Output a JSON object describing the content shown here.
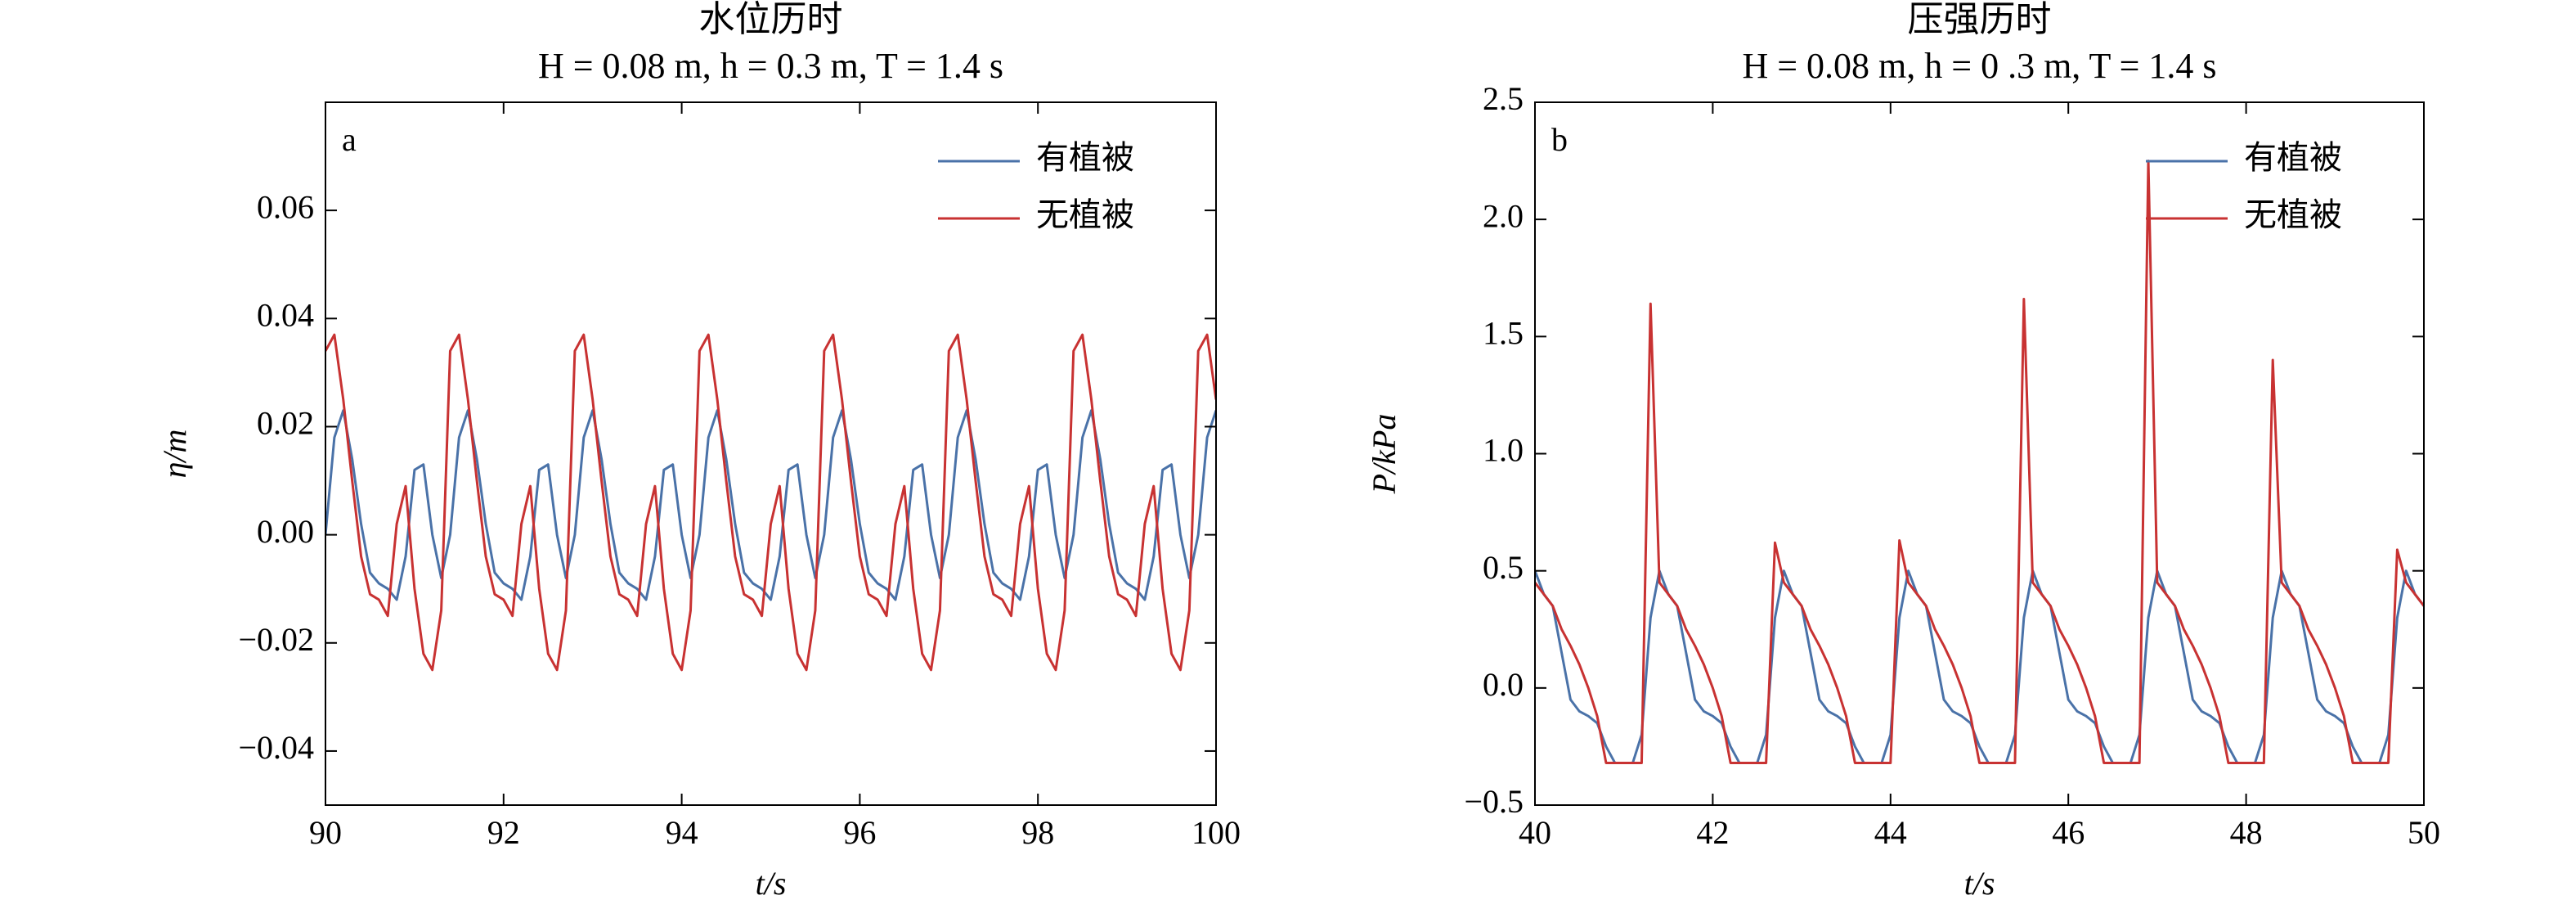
{
  "chart_data": [
    {
      "type": "line",
      "title": "水位历时",
      "subtitle": "H = 0.08 m, h = 0.3 m, T = 1.4 s",
      "panel_label": "a",
      "xlabel": "t/s",
      "ylabel": "η/m",
      "xlim": [
        90,
        100
      ],
      "ylim": [
        -0.05,
        0.08
      ],
      "xticks": [
        90,
        92,
        94,
        96,
        98,
        100
      ],
      "yticks": [
        {
          "value": -0.04,
          "label": "−0.04"
        },
        {
          "value": -0.02,
          "label": "−0.02"
        },
        {
          "value": 0,
          "label": "0.00"
        },
        {
          "value": 0.02,
          "label": "0.02"
        },
        {
          "value": 0.04,
          "label": "0.04"
        },
        {
          "value": 0.06,
          "label": "0.06"
        }
      ],
      "legend": "upper right",
      "x": [
        90,
        90.1,
        90.2,
        90.3,
        90.4,
        90.5,
        90.6,
        90.7,
        90.8,
        90.9,
        91,
        91.1,
        91.2,
        91.3,
        91.4,
        91.5,
        91.6,
        91.7,
        91.8,
        91.9,
        92,
        92.1,
        92.2,
        92.3,
        92.4,
        92.5,
        92.6,
        92.7,
        92.8,
        92.9,
        93,
        93.1,
        93.2,
        93.3,
        93.4,
        93.5,
        93.6,
        93.7,
        93.8,
        93.9,
        94,
        94.1,
        94.2,
        94.3,
        94.4,
        94.5,
        94.6,
        94.7,
        94.8,
        94.9,
        95,
        95.1,
        95.2,
        95.3,
        95.4,
        95.5,
        95.6,
        95.7,
        95.8,
        95.9,
        96,
        96.1,
        96.2,
        96.3,
        96.4,
        96.5,
        96.6,
        96.7,
        96.8,
        96.9,
        97,
        97.1,
        97.2,
        97.3,
        97.4,
        97.5,
        97.6,
        97.7,
        97.8,
        97.9,
        98,
        98.1,
        98.2,
        98.3,
        98.4,
        98.5,
        98.6,
        98.7,
        98.8,
        98.9,
        99,
        99.1,
        99.2,
        99.3,
        99.4,
        99.5,
        99.6,
        99.7,
        99.8,
        99.9,
        100
      ],
      "series": [
        {
          "name": "有植被",
          "color": "#4a72a8",
          "values": [
            0.0,
            0.018,
            0.023,
            0.014,
            0.002,
            -0.007,
            -0.009,
            -0.01,
            -0.012,
            -0.004,
            0.012,
            0.013,
            0.0,
            -0.008,
            0.0,
            0.018,
            0.023,
            0.014,
            0.002,
            -0.007,
            -0.009,
            -0.01,
            -0.012,
            -0.004,
            0.012,
            0.013,
            0.0,
            -0.008,
            0.0,
            0.018,
            0.023,
            0.014,
            0.002,
            -0.007,
            -0.009,
            -0.01,
            -0.012,
            -0.004,
            0.012,
            0.013,
            0.0,
            -0.008,
            0.0,
            0.018,
            0.023,
            0.014,
            0.002,
            -0.007,
            -0.009,
            -0.01,
            -0.012,
            -0.004,
            0.012,
            0.013,
            0.0,
            -0.008,
            0.0,
            0.018,
            0.023,
            0.014,
            0.002,
            -0.007,
            -0.009,
            -0.01,
            -0.012,
            -0.004,
            0.012,
            0.013,
            0.0,
            -0.008,
            0.0,
            0.018,
            0.023,
            0.014,
            0.002,
            -0.007,
            -0.009,
            -0.01,
            -0.012,
            -0.004,
            0.012,
            0.013,
            0.0,
            -0.008,
            0.0,
            0.018,
            0.023,
            0.014,
            0.002,
            -0.007,
            -0.009,
            -0.01,
            -0.012,
            -0.004,
            0.012,
            0.013,
            0.0,
            -0.008,
            0.0,
            0.018,
            0.023
          ]
        },
        {
          "name": "无植被",
          "color": "#c83232",
          "values": [
            0.034,
            0.037,
            0.025,
            0.01,
            -0.004,
            -0.011,
            -0.012,
            -0.015,
            0.002,
            0.009,
            -0.01,
            -0.022,
            -0.025,
            -0.014,
            0.034,
            0.037,
            0.025,
            0.01,
            -0.004,
            -0.011,
            -0.012,
            -0.015,
            0.002,
            0.009,
            -0.01,
            -0.022,
            -0.025,
            -0.014,
            0.034,
            0.037,
            0.025,
            0.01,
            -0.004,
            -0.011,
            -0.012,
            -0.015,
            0.002,
            0.009,
            -0.01,
            -0.022,
            -0.025,
            -0.014,
            0.034,
            0.037,
            0.025,
            0.01,
            -0.004,
            -0.011,
            -0.012,
            -0.015,
            0.002,
            0.009,
            -0.01,
            -0.022,
            -0.025,
            -0.014,
            0.034,
            0.037,
            0.025,
            0.01,
            -0.004,
            -0.011,
            -0.012,
            -0.015,
            0.002,
            0.009,
            -0.01,
            -0.022,
            -0.025,
            -0.014,
            0.034,
            0.037,
            0.025,
            0.01,
            -0.004,
            -0.011,
            -0.012,
            -0.015,
            0.002,
            0.009,
            -0.01,
            -0.022,
            -0.025,
            -0.014,
            0.034,
            0.037,
            0.025,
            0.01,
            -0.004,
            -0.011,
            -0.012,
            -0.015,
            0.002,
            0.009,
            -0.01,
            -0.022,
            -0.025,
            -0.014,
            0.034,
            0.037,
            0.025
          ]
        }
      ]
    },
    {
      "type": "line",
      "title": "压强历时",
      "subtitle": "H = 0.08 m, h = 0 .3 m, T = 1.4 s",
      "panel_label": "b",
      "xlabel": "t/s",
      "ylabel": "P/kPa",
      "xlim": [
        40,
        50
      ],
      "ylim": [
        -0.5,
        2.5
      ],
      "xticks": [
        40,
        42,
        44,
        46,
        48,
        50
      ],
      "yticks": [
        {
          "value": -0.5,
          "label": "−0.5"
        },
        {
          "value": 0,
          "label": "0.0"
        },
        0.5,
        {
          "value": 1,
          "label": "1.0"
        },
        1.5,
        {
          "value": 2,
          "label": "2.0"
        },
        2.5
      ],
      "legend": "upper right",
      "x": [
        40,
        40.1,
        40.2,
        40.3,
        40.4,
        40.5,
        40.6,
        40.7,
        40.8,
        40.9,
        41,
        41.1,
        41.2,
        41.3,
        41.4,
        41.5,
        41.6,
        41.7,
        41.8,
        41.9,
        42,
        42.1,
        42.2,
        42.3,
        42.4,
        42.5,
        42.6,
        42.7,
        42.8,
        42.9,
        43,
        43.1,
        43.2,
        43.3,
        43.4,
        43.5,
        43.6,
        43.7,
        43.8,
        43.9,
        44,
        44.1,
        44.2,
        44.3,
        44.4,
        44.5,
        44.6,
        44.7,
        44.8,
        44.9,
        45,
        45.1,
        45.2,
        45.3,
        45.4,
        45.5,
        45.6,
        45.7,
        45.8,
        45.9,
        46,
        46.1,
        46.2,
        46.3,
        46.4,
        46.5,
        46.6,
        46.7,
        46.8,
        46.9,
        47,
        47.1,
        47.2,
        47.3,
        47.4,
        47.5,
        47.6,
        47.7,
        47.8,
        47.9,
        48,
        48.1,
        48.2,
        48.3,
        48.4,
        48.5,
        48.6,
        48.7,
        48.8,
        48.9,
        49,
        49.1,
        49.2,
        49.3,
        49.4,
        49.5,
        49.6,
        49.7,
        49.8,
        49.9,
        50
      ],
      "series": [
        {
          "name": "有植被",
          "color": "#4a72a8",
          "values": [
            0.5,
            0.4,
            0.35,
            0.15,
            -0.05,
            -0.1,
            -0.12,
            -0.15,
            -0.25,
            -0.32,
            -0.32,
            -0.32,
            -0.2,
            0.3,
            0.5,
            0.4,
            0.35,
            0.15,
            -0.05,
            -0.1,
            -0.12,
            -0.15,
            -0.25,
            -0.32,
            -0.32,
            -0.32,
            -0.2,
            0.3,
            0.5,
            0.4,
            0.35,
            0.15,
            -0.05,
            -0.1,
            -0.12,
            -0.15,
            -0.25,
            -0.32,
            -0.32,
            -0.32,
            -0.2,
            0.3,
            0.5,
            0.4,
            0.35,
            0.15,
            -0.05,
            -0.1,
            -0.12,
            -0.15,
            -0.25,
            -0.32,
            -0.32,
            -0.32,
            -0.2,
            0.3,
            0.5,
            0.4,
            0.35,
            0.15,
            -0.05,
            -0.1,
            -0.12,
            -0.15,
            -0.25,
            -0.32,
            -0.32,
            -0.32,
            -0.2,
            0.3,
            0.5,
            0.4,
            0.35,
            0.15,
            -0.05,
            -0.1,
            -0.12,
            -0.15,
            -0.25,
            -0.32,
            -0.32,
            -0.32,
            -0.2,
            0.3,
            0.5,
            0.4,
            0.35,
            0.15,
            -0.05,
            -0.1,
            -0.12,
            -0.15,
            -0.25,
            -0.32,
            -0.32,
            -0.32,
            -0.2,
            0.3,
            0.5,
            0.4,
            0.35
          ]
        },
        {
          "name": "无植被",
          "color": "#c83232",
          "values": [
            0.45,
            0.4,
            0.35,
            0.25,
            0.18,
            0.1,
            0.0,
            -0.12,
            -0.32,
            -0.32,
            -0.32,
            -0.32,
            -0.32,
            1.64,
            0.45,
            0.4,
            0.35,
            0.25,
            0.18,
            0.1,
            0.0,
            -0.12,
            -0.32,
            -0.32,
            -0.32,
            -0.32,
            -0.32,
            0.62,
            0.45,
            0.4,
            0.35,
            0.25,
            0.18,
            0.1,
            0.0,
            -0.12,
            -0.32,
            -0.32,
            -0.32,
            -0.32,
            -0.32,
            0.63,
            0.45,
            0.4,
            0.35,
            0.25,
            0.18,
            0.1,
            0.0,
            -0.12,
            -0.32,
            -0.32,
            -0.32,
            -0.32,
            -0.32,
            1.66,
            0.45,
            0.4,
            0.35,
            0.25,
            0.18,
            0.1,
            0.0,
            -0.12,
            -0.32,
            -0.32,
            -0.32,
            -0.32,
            -0.32,
            2.25,
            0.45,
            0.4,
            0.35,
            0.25,
            0.18,
            0.1,
            0.0,
            -0.12,
            -0.32,
            -0.32,
            -0.32,
            -0.32,
            -0.32,
            1.4,
            0.45,
            0.4,
            0.35,
            0.25,
            0.18,
            0.1,
            0.0,
            -0.12,
            -0.32,
            -0.32,
            -0.32,
            -0.32,
            -0.32,
            0.59,
            0.45,
            0.4,
            0.35
          ]
        }
      ]
    }
  ]
}
